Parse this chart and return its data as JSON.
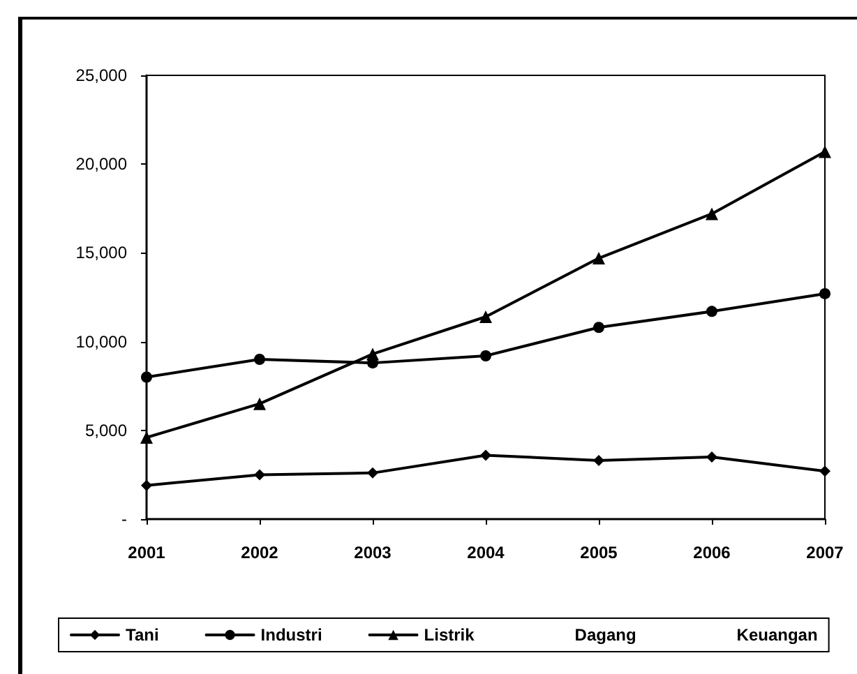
{
  "chart_data": {
    "type": "line",
    "categories": [
      "2001",
      "2002",
      "2003",
      "2004",
      "2005",
      "2006",
      "2007"
    ],
    "series": [
      {
        "name": "Tani",
        "color": "#000000",
        "marker": "diamond",
        "values": [
          1900,
          2500,
          2600,
          3600,
          3300,
          3500,
          2700
        ]
      },
      {
        "name": "Industri",
        "color": "#000000",
        "marker": "circle",
        "values": [
          8000,
          9000,
          8800,
          9200,
          10800,
          11700,
          12700
        ]
      },
      {
        "name": "Listrik",
        "color": "#000000",
        "marker": "triangle",
        "values": [
          4600,
          6500,
          9300,
          11400,
          14700,
          17200,
          20700
        ]
      },
      {
        "name": "Dagang",
        "values": [
          null,
          null,
          null,
          null,
          null,
          null,
          null
        ]
      },
      {
        "name": "Keuangan",
        "values": [
          null,
          null,
          null,
          null,
          null,
          null,
          null
        ]
      }
    ],
    "ylim": [
      0,
      25000
    ],
    "yticks": [
      {
        "value": 0,
        "label": "-"
      },
      {
        "value": 5000,
        "label": "5,000"
      },
      {
        "value": 10000,
        "label": "10,000"
      },
      {
        "value": 15000,
        "label": "15,000"
      },
      {
        "value": 20000,
        "label": "20,000"
      },
      {
        "value": 25000,
        "label": "25,000"
      }
    ],
    "grid": false,
    "legend": "bottom",
    "line_style": "solid"
  }
}
